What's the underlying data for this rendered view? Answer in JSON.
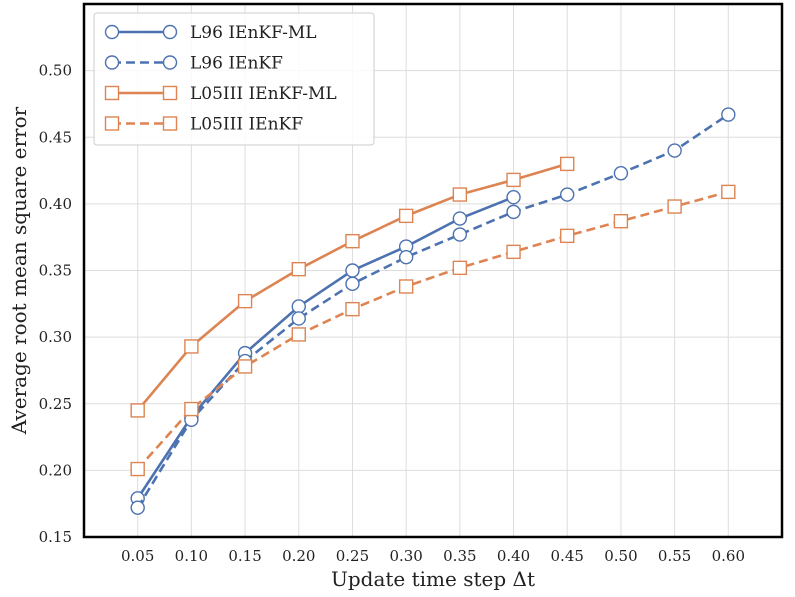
{
  "chart_data": {
    "type": "line",
    "xlabel": "Update time step Δt",
    "ylabel": "Average root mean square error",
    "xlim": [
      0.0,
      0.65
    ],
    "ylim": [
      0.15,
      0.55
    ],
    "x_ticks": [
      "0.05",
      "0.10",
      "0.15",
      "0.20",
      "0.25",
      "0.30",
      "0.35",
      "0.40",
      "0.45",
      "0.50",
      "0.55",
      "0.60"
    ],
    "x_tick_values": [
      0.05,
      0.1,
      0.15,
      0.2,
      0.25,
      0.3,
      0.35,
      0.4,
      0.45,
      0.5,
      0.55,
      0.6
    ],
    "y_ticks": [
      "0.15",
      "0.20",
      "0.25",
      "0.30",
      "0.35",
      "0.40",
      "0.45",
      "0.50"
    ],
    "y_tick_values": [
      0.15,
      0.2,
      0.25,
      0.3,
      0.35,
      0.4,
      0.45,
      0.5
    ],
    "grid": true,
    "legend_position": "top-left",
    "series": [
      {
        "name": "L96 IEnKF-ML",
        "color": "#4c72b0",
        "line_style": "solid",
        "marker": "circle",
        "x": [
          0.05,
          0.1,
          0.15,
          0.2,
          0.25,
          0.3,
          0.35,
          0.4
        ],
        "values": [
          0.179,
          0.24,
          0.288,
          0.323,
          0.35,
          0.368,
          0.389,
          0.405
        ]
      },
      {
        "name": "L96 IEnKF",
        "color": "#4c72b0",
        "line_style": "dashed",
        "marker": "circle",
        "x": [
          0.05,
          0.1,
          0.15,
          0.2,
          0.25,
          0.3,
          0.35,
          0.4,
          0.45,
          0.5,
          0.55,
          0.6
        ],
        "values": [
          0.172,
          0.238,
          0.282,
          0.314,
          0.34,
          0.36,
          0.377,
          0.394,
          0.407,
          0.423,
          0.44,
          0.467
        ]
      },
      {
        "name": "L05III IEnKF-ML",
        "color": "#dd8452",
        "line_style": "solid",
        "marker": "square",
        "x": [
          0.05,
          0.1,
          0.15,
          0.2,
          0.25,
          0.3,
          0.35,
          0.4,
          0.45
        ],
        "values": [
          0.245,
          0.293,
          0.327,
          0.351,
          0.372,
          0.391,
          0.407,
          0.418,
          0.43
        ]
      },
      {
        "name": "L05III IEnKF",
        "color": "#dd8452",
        "line_style": "dashed",
        "marker": "square",
        "x": [
          0.05,
          0.1,
          0.15,
          0.2,
          0.25,
          0.3,
          0.35,
          0.4,
          0.45,
          0.5,
          0.55,
          0.6
        ],
        "values": [
          0.201,
          0.246,
          0.278,
          0.302,
          0.321,
          0.338,
          0.352,
          0.364,
          0.376,
          0.387,
          0.398,
          0.409
        ]
      }
    ]
  }
}
